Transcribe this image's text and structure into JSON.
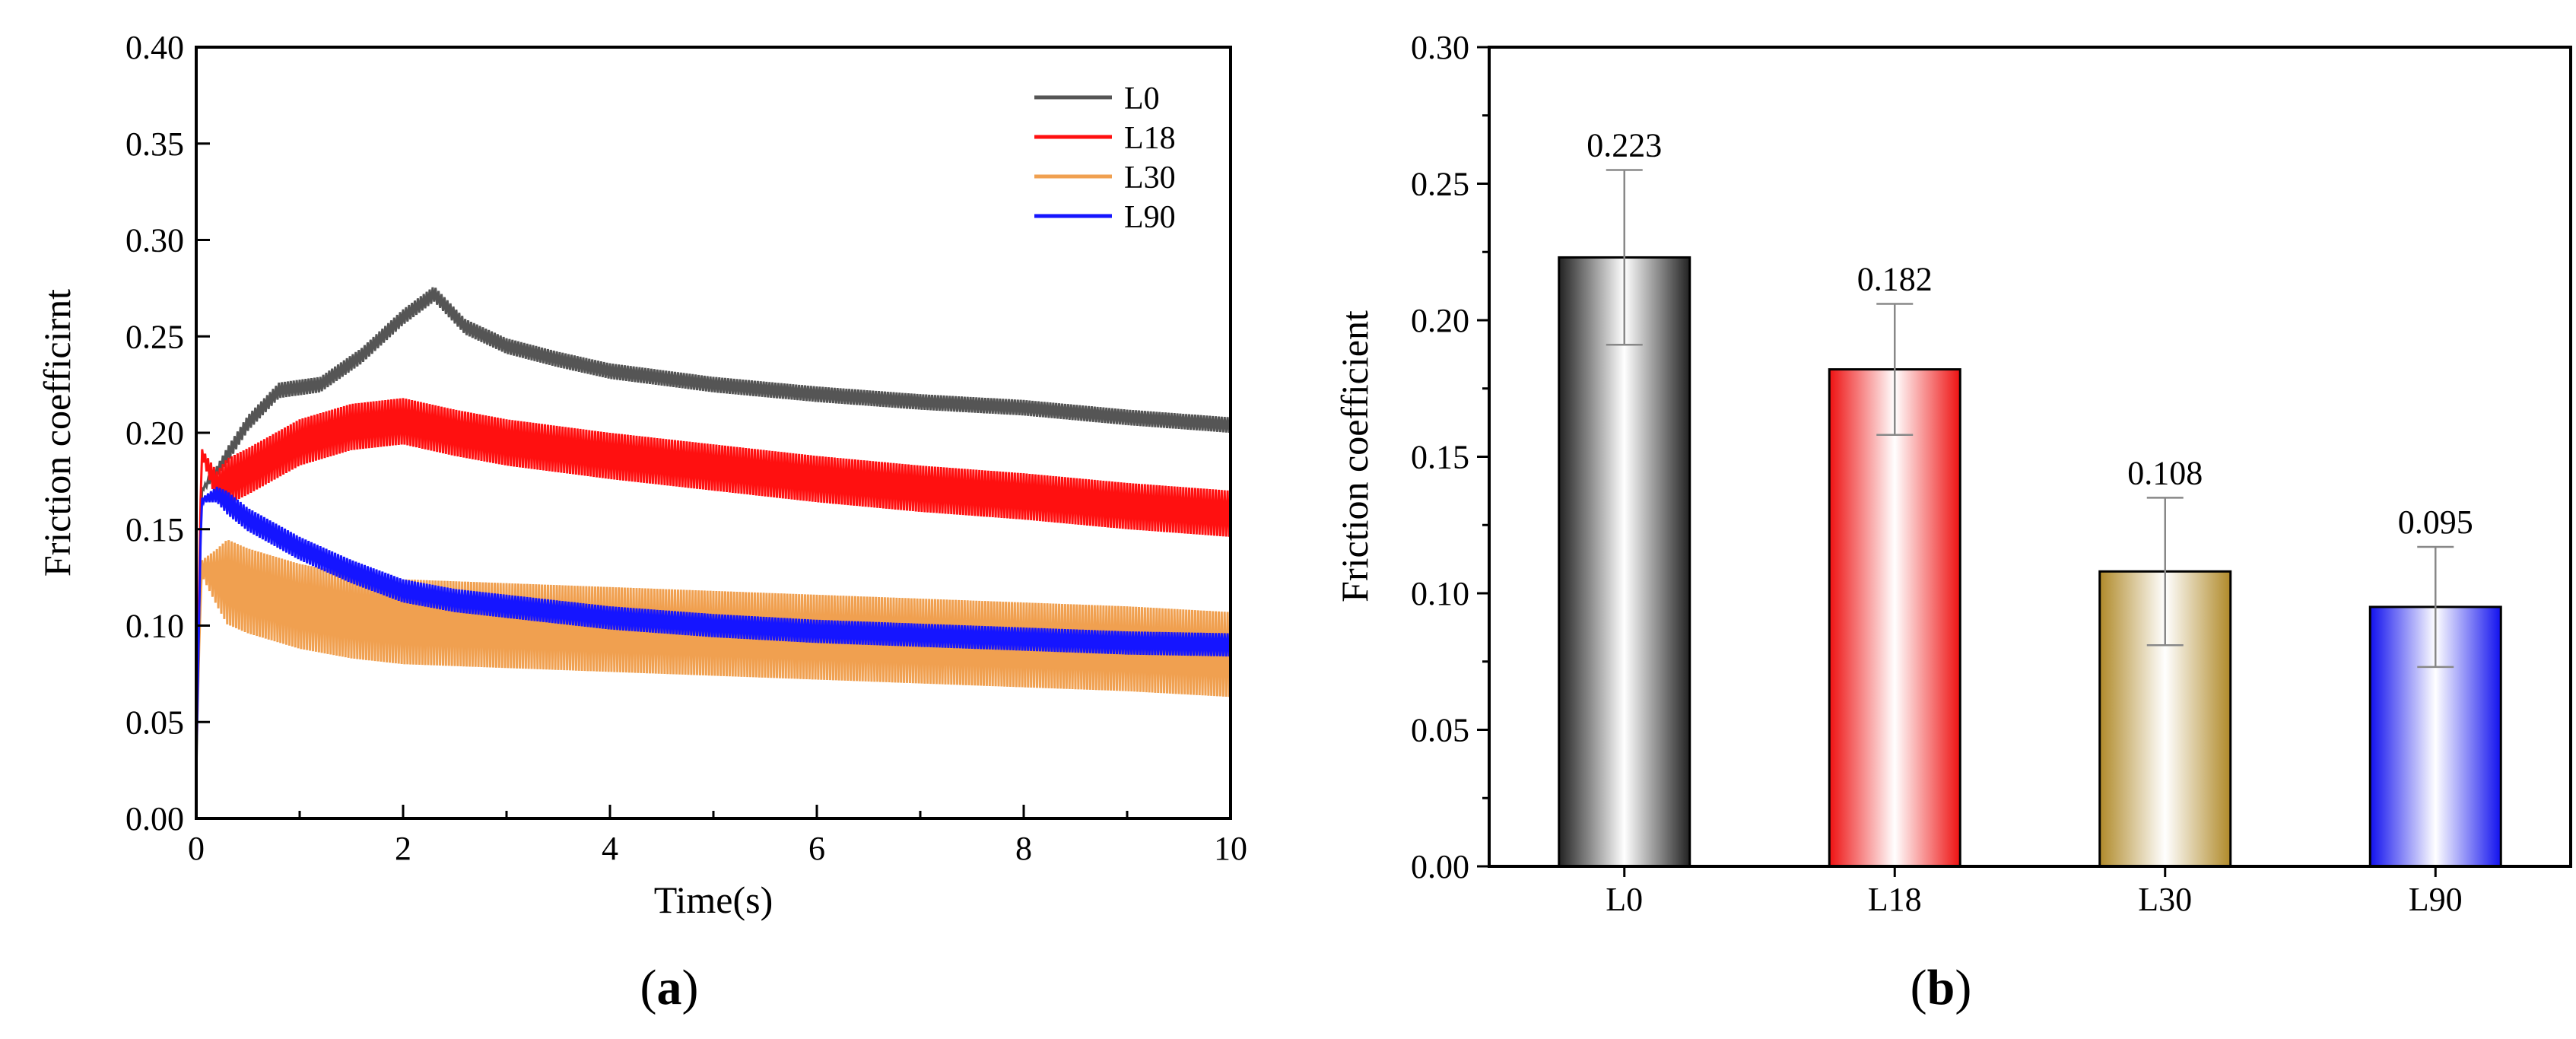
{
  "chart_data": [
    {
      "panel": "a",
      "panel_label": {
        "open": "(",
        "letter": "a",
        "close": ")"
      },
      "type": "line",
      "title": "",
      "xlabel": "Time(s)",
      "ylabel": "Friction coefficirnt",
      "xlim": [
        0,
        10
      ],
      "ylim": [
        0,
        0.4
      ],
      "xticks": [
        0,
        2,
        4,
        6,
        8,
        10
      ],
      "xtick_labels": [
        "0",
        "2",
        "4",
        "6",
        "8",
        "10"
      ],
      "yticks": [
        0,
        0.05,
        0.1,
        0.15,
        0.2,
        0.25,
        0.3,
        0.35,
        0.4
      ],
      "ytick_labels": [
        "0.00",
        "0.05",
        "0.10",
        "0.15",
        "0.20",
        "0.25",
        "0.30",
        "0.35",
        "0.40"
      ],
      "legend_position": "top-right",
      "series": [
        {
          "name": "L0",
          "color": "#555555",
          "x": [
            0,
            0.05,
            0.2,
            0.5,
            0.8,
            1.2,
            1.6,
            2.0,
            2.3,
            2.6,
            3.0,
            3.5,
            4.0,
            5.0,
            6.0,
            7.0,
            8.0,
            9.0,
            10.0
          ],
          "y": [
            0.02,
            0.17,
            0.18,
            0.205,
            0.222,
            0.225,
            0.24,
            0.26,
            0.272,
            0.255,
            0.245,
            0.238,
            0.232,
            0.225,
            0.22,
            0.216,
            0.213,
            0.208,
            0.204
          ],
          "band": 0.004
        },
        {
          "name": "L18",
          "color": "#ff1010",
          "x": [
            0,
            0.05,
            0.2,
            0.5,
            1.0,
            1.5,
            2.0,
            2.5,
            3.0,
            4.0,
            5.0,
            6.0,
            7.0,
            8.0,
            9.0,
            10.0
          ],
          "y": [
            0.03,
            0.19,
            0.172,
            0.18,
            0.195,
            0.203,
            0.206,
            0.2,
            0.195,
            0.188,
            0.182,
            0.176,
            0.171,
            0.167,
            0.162,
            0.158
          ],
          "band": 0.012
        },
        {
          "name": "L30",
          "color": "#f0a050",
          "x": [
            0,
            0.05,
            0.2,
            0.5,
            1.0,
            1.5,
            2.0,
            3.0,
            4.0,
            5.0,
            6.0,
            7.0,
            8.0,
            9.0,
            10.0
          ],
          "y": [
            0.03,
            0.13,
            0.125,
            0.118,
            0.11,
            0.105,
            0.102,
            0.1,
            0.098,
            0.096,
            0.094,
            0.092,
            0.09,
            0.088,
            0.085
          ],
          "band": 0.022
        },
        {
          "name": "L90",
          "color": "#1515ff",
          "x": [
            0,
            0.05,
            0.2,
            0.5,
            1.0,
            1.5,
            2.0,
            2.5,
            3.0,
            4.0,
            5.0,
            6.0,
            7.0,
            8.0,
            9.0,
            10.0
          ],
          "y": [
            0.03,
            0.165,
            0.168,
            0.155,
            0.14,
            0.128,
            0.118,
            0.113,
            0.11,
            0.104,
            0.1,
            0.097,
            0.095,
            0.093,
            0.091,
            0.09
          ],
          "band": 0.006
        }
      ]
    },
    {
      "panel": "b",
      "panel_label": {
        "open": "(",
        "letter": "b",
        "close": ")"
      },
      "type": "bar",
      "title": "",
      "xlabel": "",
      "ylabel": "Friction coefficient",
      "ylim": [
        0,
        0.3
      ],
      "yticks": [
        0,
        0.05,
        0.1,
        0.15,
        0.2,
        0.25,
        0.3
      ],
      "ytick_labels": [
        "0.00",
        "0.05",
        "0.10",
        "0.15",
        "0.20",
        "0.25",
        "0.30"
      ],
      "categories": [
        "L0",
        "L18",
        "L30",
        "L90"
      ],
      "values": [
        0.223,
        0.182,
        0.108,
        0.095
      ],
      "value_labels": [
        "0.223",
        "0.182",
        "0.108",
        "0.095"
      ],
      "errors": [
        0.032,
        0.024,
        0.027,
        0.022
      ],
      "colors": [
        "#222222",
        "#ee1111",
        "#b08a2a",
        "#1111ee"
      ]
    }
  ]
}
